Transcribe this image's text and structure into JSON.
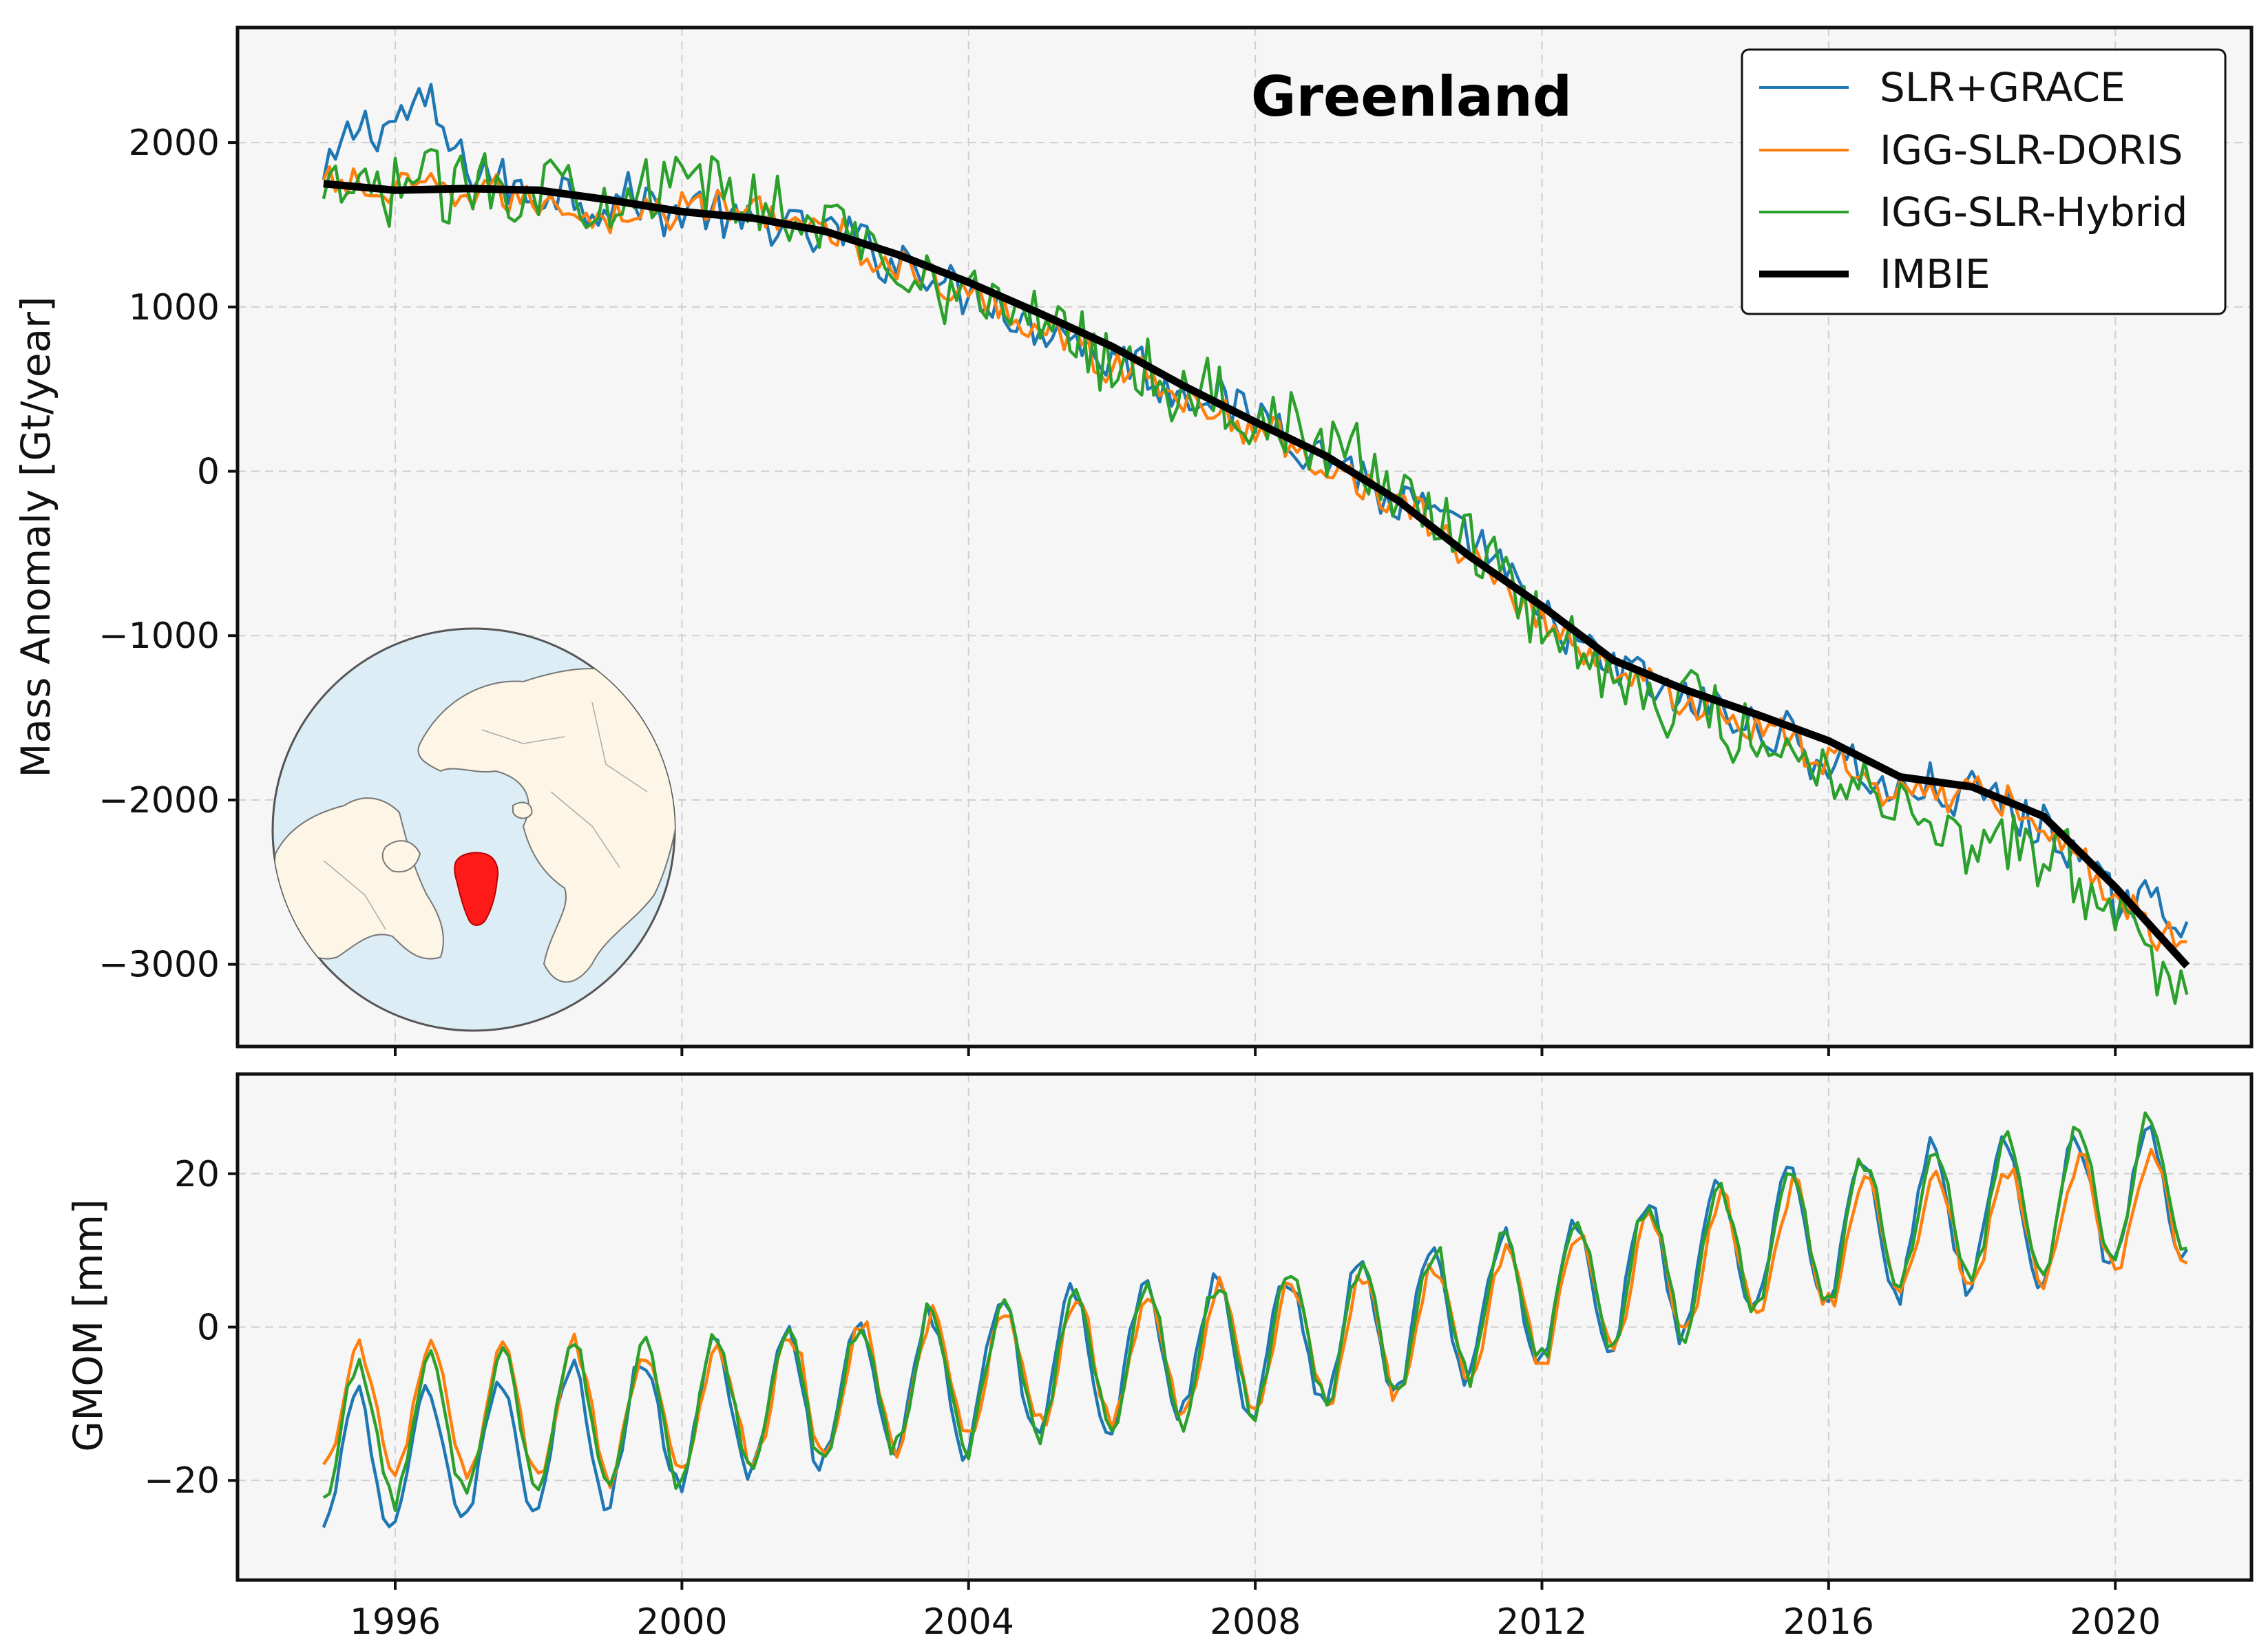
{
  "chart_data": [
    {
      "type": "line",
      "title": "Greenland",
      "xlabel": "",
      "ylabel": "Mass Anomaly [Gt/year]",
      "xlim": [
        1993.8,
        2021.9
      ],
      "ylim": [
        -3500,
        2700
      ],
      "grid": true,
      "legend_position": "top-right",
      "yticks": [
        2000,
        1000,
        0,
        -1000,
        -2000,
        -3000
      ],
      "ytick_labels": [
        "2000",
        "1000",
        "0",
        "−1000",
        "−2000",
        "−3000"
      ],
      "inset": "north-polar globe with Greenland highlighted in red",
      "colors": {
        "SLR+GRACE": "#1f77b4",
        "IGG-SLR-DORIS": "#ff7f0e",
        "IGG-SLR-Hybrid": "#2ca02c",
        "IMBIE": "#000000",
        "greenland": "#ff1a1a",
        "ocean": "#dcedf5",
        "land": "#fdf6e6"
      },
      "series": [
        {
          "name": "SLR+GRACE",
          "color": "#1f77b4",
          "noise": 150,
          "x": [
            1995,
            1995.5,
            1996,
            1996.5,
            1997,
            1997.5,
            1998,
            1999,
            2000,
            2001,
            2002,
            2003,
            2004,
            2005,
            2006,
            2007,
            2008,
            2009,
            2010,
            2011,
            2012,
            2013,
            2014,
            2015,
            2016,
            2017,
            2018,
            2019,
            2020,
            2021
          ],
          "y": [
            1750,
            2100,
            2150,
            2200,
            1850,
            1750,
            1700,
            1650,
            1600,
            1500,
            1450,
            1300,
            1100,
            900,
            700,
            500,
            350,
            100,
            -200,
            -400,
            -900,
            -1200,
            -1400,
            -1550,
            -1750,
            -1950,
            -1950,
            -2150,
            -2600,
            -2700
          ]
        },
        {
          "name": "IGG-SLR-DORIS",
          "color": "#ff7f0e",
          "noise": 110,
          "x": [
            1995,
            1996,
            1997,
            1998,
            1999,
            2000,
            2001,
            2002,
            2003,
            2004,
            2005,
            2006,
            2007,
            2008,
            2009,
            2010,
            2011,
            2012,
            2013,
            2014,
            2015,
            2016,
            2017,
            2018,
            2019,
            2020,
            2020.5,
            2021
          ],
          "y": [
            1750,
            1700,
            1700,
            1650,
            1550,
            1600,
            1600,
            1450,
            1250,
            1050,
            900,
            650,
            450,
            250,
            50,
            -200,
            -500,
            -900,
            -1200,
            -1400,
            -1550,
            -1750,
            -1950,
            -1950,
            -2100,
            -2600,
            -2800,
            -2800
          ]
        },
        {
          "name": "IGG-SLR-Hybrid",
          "color": "#2ca02c",
          "noise": 210,
          "x": [
            1995,
            1996,
            1997,
            1998,
            1999,
            2000,
            2001,
            2002,
            2003,
            2004,
            2005,
            2006,
            2007,
            2008,
            2009,
            2010,
            2011,
            2012,
            2013,
            2014,
            2015,
            2016,
            2017,
            2018,
            2019,
            2020,
            2020.5,
            2021
          ],
          "y": [
            1600,
            1750,
            1750,
            1750,
            1700,
            1750,
            1650,
            1500,
            1300,
            1050,
            950,
            700,
            500,
            350,
            150,
            -100,
            -400,
            -900,
            -1250,
            -1400,
            -1600,
            -1800,
            -2000,
            -2250,
            -2300,
            -2700,
            -3000,
            -3000
          ]
        },
        {
          "name": "IMBIE",
          "color": "#000000",
          "noise": 0,
          "x": [
            1995,
            1996,
            1997,
            1998,
            1999,
            2000,
            2001,
            2002,
            2003,
            2004,
            2005,
            2006,
            2007,
            2008,
            2009,
            2010,
            2011,
            2012,
            2013,
            2014,
            2015,
            2016,
            2017,
            2018,
            2019,
            2020,
            2021
          ],
          "y": [
            1750,
            1710,
            1720,
            1710,
            1650,
            1580,
            1540,
            1460,
            1320,
            1150,
            960,
            760,
            520,
            300,
            90,
            -180,
            -520,
            -820,
            -1150,
            -1330,
            -1480,
            -1640,
            -1860,
            -1920,
            -2100,
            -2530,
            -3010
          ]
        }
      ]
    },
    {
      "type": "line",
      "title": "",
      "xlabel": "",
      "ylabel": "GMOM [mm]",
      "xlim": [
        1993.8,
        2021.9
      ],
      "ylim": [
        -33,
        33
      ],
      "grid": true,
      "yticks": [
        20,
        0,
        -20
      ],
      "ytick_labels": [
        "20",
        "0",
        "−20"
      ],
      "xticks": [
        1996,
        2000,
        2004,
        2008,
        2012,
        2016,
        2020
      ],
      "xtick_labels": [
        "1996",
        "2000",
        "2004",
        "2008",
        "2012",
        "2016",
        "2020"
      ],
      "series": [
        {
          "name": "SLR+GRACE",
          "color": "#1f77b4",
          "amplitude": 9,
          "phase": 0.05,
          "trend_x": [
            1995,
            2000,
            2005,
            2010,
            2015,
            2021
          ],
          "trend_y": [
            -19,
            -12,
            -5,
            0,
            11,
            18
          ]
        },
        {
          "name": "IGG-SLR-DORIS",
          "color": "#ff7f0e",
          "amplitude": 8,
          "phase": 0.0,
          "trend_x": [
            1995,
            2000,
            2005,
            2010,
            2015,
            2021
          ],
          "trend_y": [
            -11,
            -11,
            -5,
            -1,
            10,
            16
          ]
        },
        {
          "name": "IGG-SLR-Hybrid",
          "color": "#2ca02c",
          "amplitude": 9,
          "phase": 0.02,
          "trend_x": [
            1995,
            2000,
            2005,
            2010,
            2015,
            2021
          ],
          "trend_y": [
            -14,
            -11,
            -5,
            0,
            11,
            19
          ]
        }
      ]
    }
  ]
}
